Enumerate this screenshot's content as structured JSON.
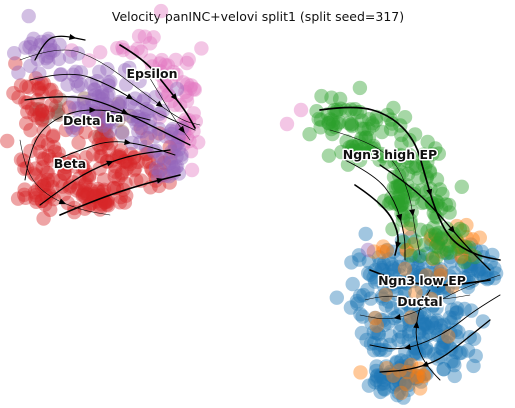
{
  "chart_data": {
    "type": "scatter",
    "title": "Velocity panINC+velovi split1 (split seed=317)",
    "xlabel": "",
    "ylabel": "",
    "grid": false,
    "legend": "none (labels placed on data)",
    "clusters": [
      {
        "name": "Alpha",
        "color": "#9467bd"
      },
      {
        "name": "Beta",
        "color": "#d62728"
      },
      {
        "name": "Delta",
        "color": "#8c564b"
      },
      {
        "name": "Epsilon",
        "color": "#e377c2"
      },
      {
        "name": "Ngn3 high EP",
        "color": "#2ca02c"
      },
      {
        "name": "Ngn3 low EP",
        "color": "#ff7f0e"
      },
      {
        "name": "Ductal",
        "color": "#1f77b4"
      }
    ],
    "annotations": [
      "Epsilon",
      "Delta",
      "ha",
      "Beta",
      "Ngn3 high EP",
      "Ngn3 low EP",
      "Ductal"
    ],
    "overlay": "velocity streamlines with arrows"
  }
}
